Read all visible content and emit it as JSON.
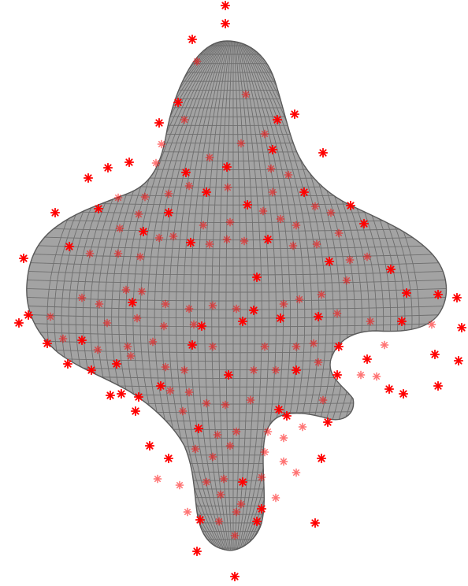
{
  "figure": {
    "colors": {
      "surface_fill": "#a3a3a3",
      "mesh_lines": "#6e6e6e",
      "outline": "#5a5a5a",
      "marker": "#ff0000",
      "background": "#ffffff"
    },
    "marker_symbol": "asterisk"
  }
}
